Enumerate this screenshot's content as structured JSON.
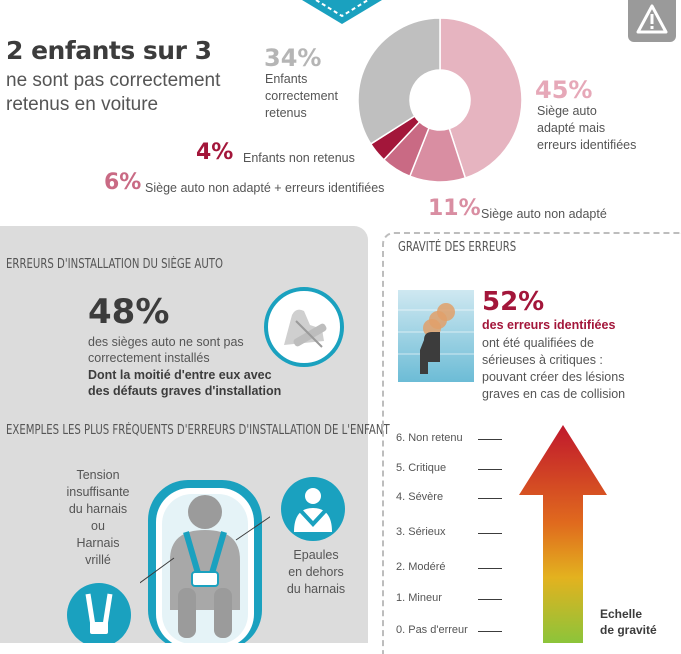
{
  "headline": {
    "title": "2 enfants sur 3",
    "line1": "ne sont pas correctement",
    "line2": "retenus en voiture"
  },
  "chart_data": {
    "type": "pie",
    "title": "",
    "slices": [
      {
        "label": "Siège auto adapté mais erreurs identifiées",
        "value": 45,
        "color": "#e6b4c0"
      },
      {
        "label": "Siège auto non adapté",
        "value": 11,
        "color": "#d98ea2"
      },
      {
        "label": "Siège auto non adapté + erreurs identifiées",
        "value": 6,
        "color": "#c96a84"
      },
      {
        "label": "Enfants non retenus",
        "value": 4,
        "color": "#a3163a"
      },
      {
        "label": "Enfants correctement retenus",
        "value": 34,
        "color": "#bfbfbf"
      }
    ]
  },
  "labels": {
    "s34": {
      "pct": "34%",
      "l1": "Enfants",
      "l2": "correctement",
      "l3": "retenus"
    },
    "s45": {
      "pct": "45%",
      "l1": "Siège auto",
      "l2": "adapté mais",
      "l3": "erreurs identifiées"
    },
    "s4": {
      "pct": "4%",
      "text": "Enfants non retenus"
    },
    "s6": {
      "pct": "6%",
      "text": "Siège auto non adapté + erreurs identifiées"
    },
    "s11": {
      "pct": "11%",
      "text": "Siège auto non adapté"
    }
  },
  "install": {
    "heading": "Erreurs d'installation du siège auto",
    "pct": "48%",
    "l1": "des sièges auto ne sont pas",
    "l2": "correctement installés",
    "b1": "Dont la moitié d'entre eux avec",
    "b2": "des défauts graves d'installation"
  },
  "examples": {
    "heading": "Exemples les plus fréquents d'erreurs d'installation de l'enfant",
    "left": [
      "Tension",
      "insuffisante",
      "du harnais",
      "ou",
      "Harnais",
      "vrillé"
    ],
    "right": [
      "Epaules",
      "en dehors",
      "du harnais"
    ]
  },
  "gravite": {
    "heading": "Gravité des erreurs",
    "pct": "52%",
    "bold": "des erreurs identifiées",
    "lines": [
      "ont été qualifiées de",
      "sérieuses à critiques :",
      "pouvant créer des lésions",
      "graves en cas de collision"
    ],
    "scale": [
      "6. Non retenu",
      "5. Critique",
      "4. Sévère",
      "3. Sérieux",
      "2. Modéré",
      "1. Mineur",
      "0. Pas d'erreur"
    ],
    "scale_title1": "Echelle",
    "scale_title2": "de gravité"
  },
  "colors": {
    "accent_red": "#a3163a",
    "teal": "#1aa1bf",
    "pink": "#d98ea2",
    "grey": "#bfbfbf"
  }
}
